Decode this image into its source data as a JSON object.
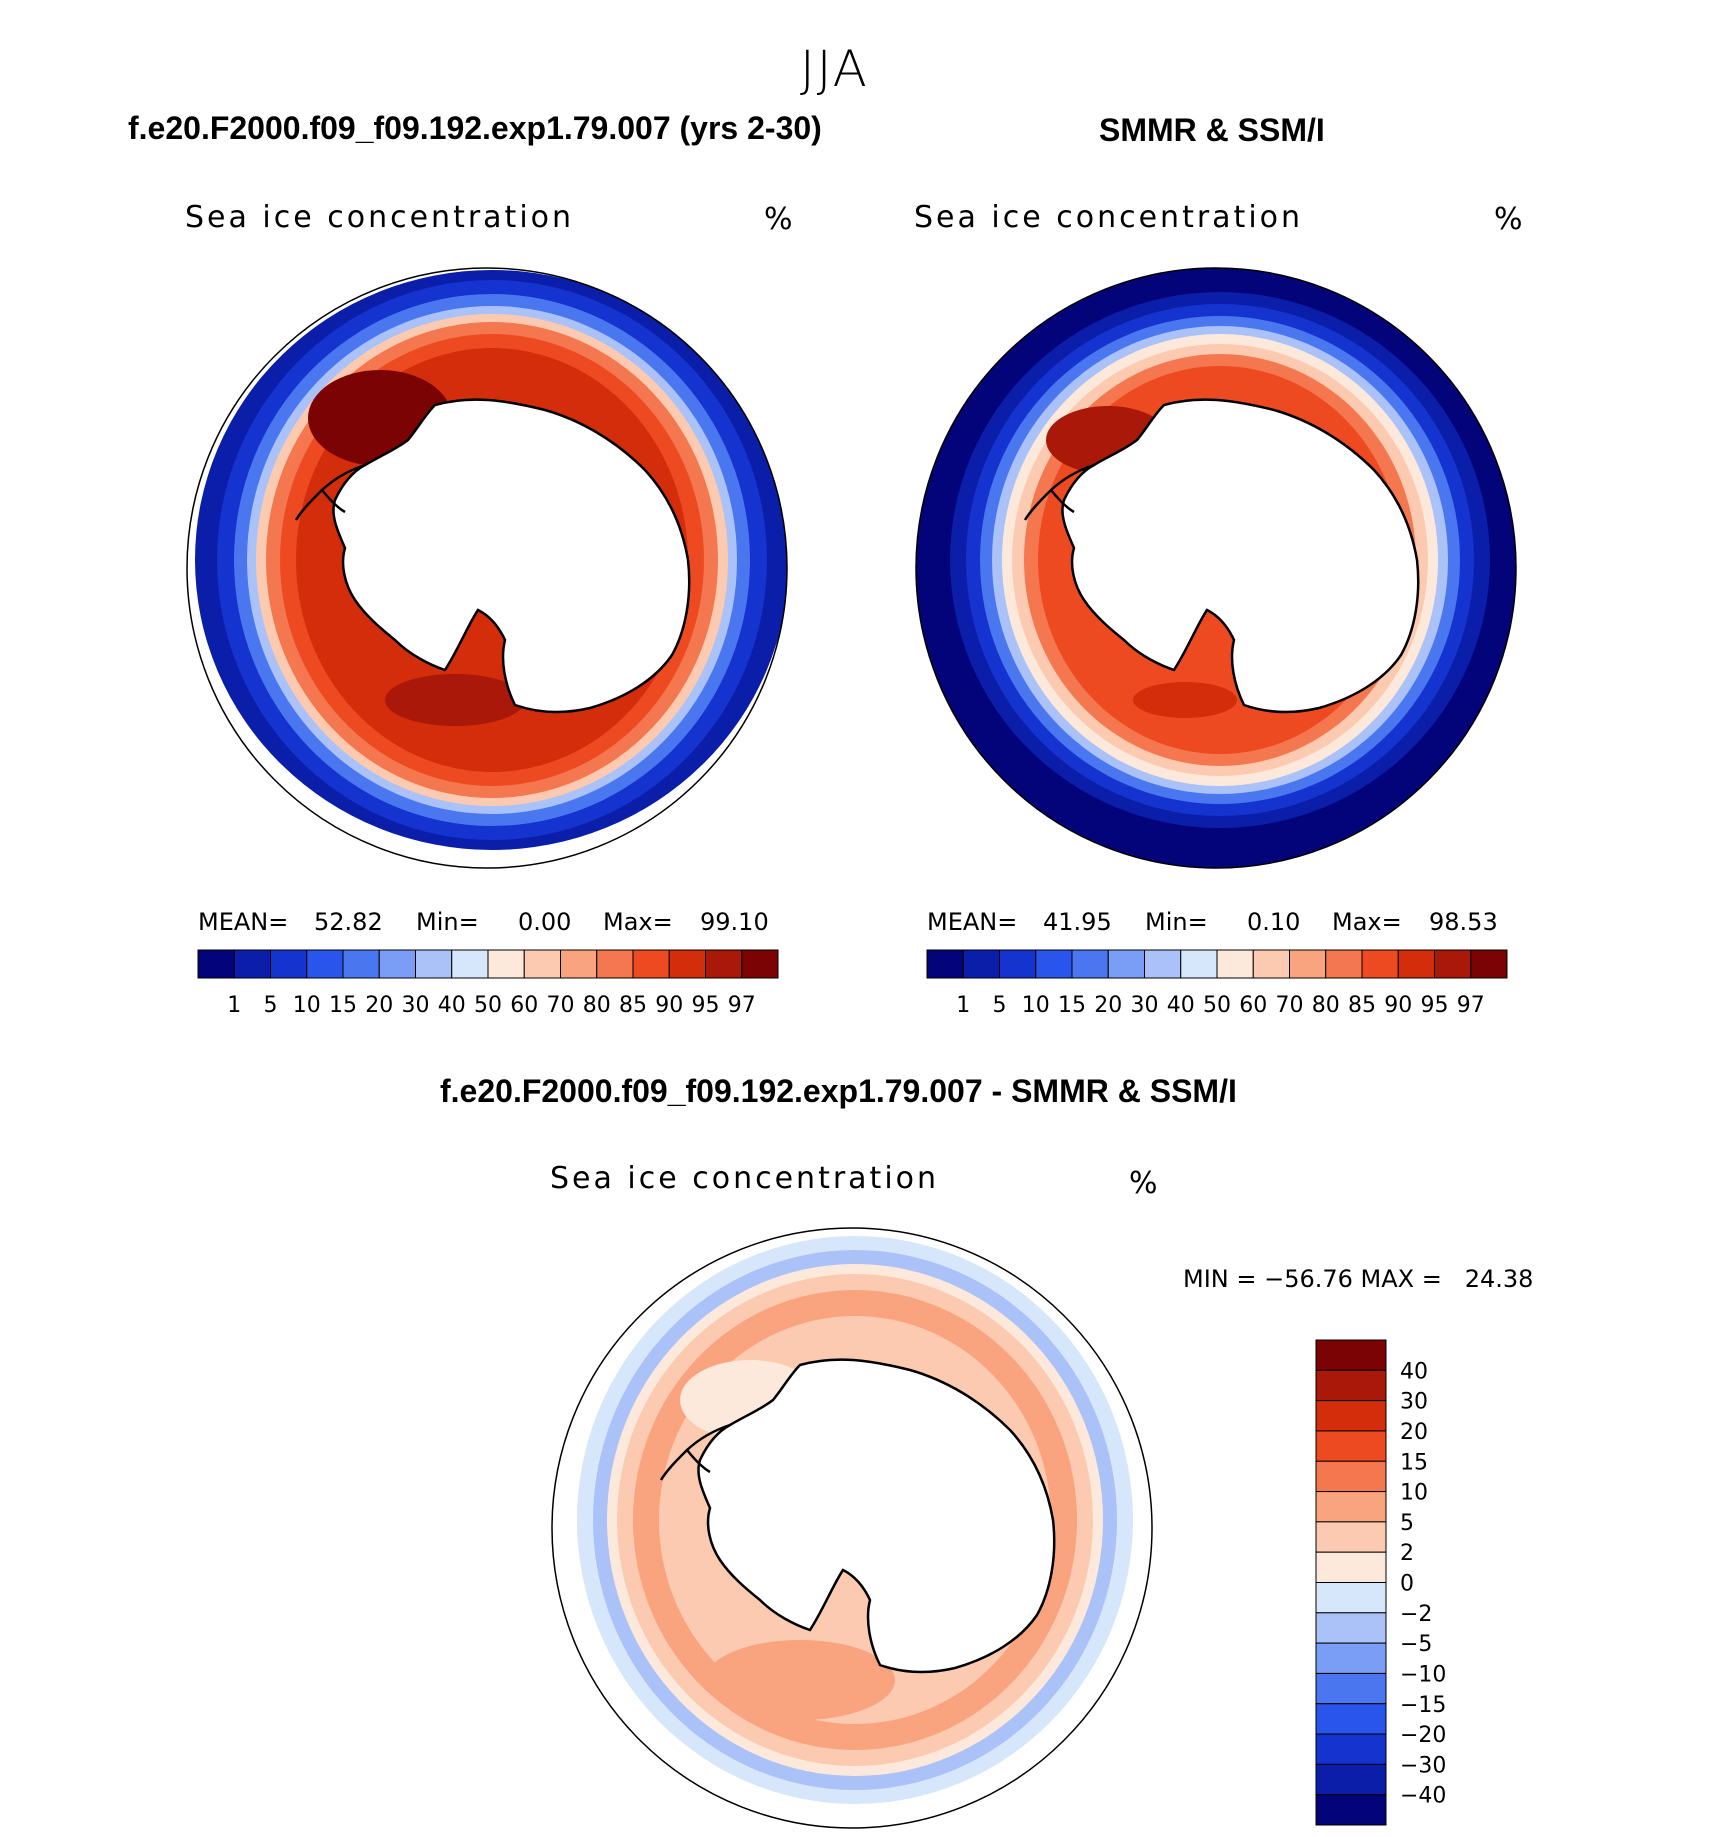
{
  "figure": {
    "season": "JJA",
    "panels": [
      {
        "id": "model",
        "title": "f.e20.F2000.f09_f09.192.exp1.79.007 (yrs 2-30)",
        "variable": "Sea ice concentration",
        "units": "%",
        "stats": {
          "mean_label": "MEAN=",
          "mean": "52.82",
          "min_label": "Min=",
          "min": "0.00",
          "max_label": "Max=",
          "max": "99.10"
        }
      },
      {
        "id": "obs",
        "title": "SMMR & SSM/I",
        "variable": "Sea ice concentration",
        "units": "%",
        "stats": {
          "mean_label": "MEAN=",
          "mean": "41.95",
          "min_label": "Min=",
          "min": "0.10",
          "max_label": "Max=",
          "max": "98.53"
        }
      },
      {
        "id": "diff",
        "title": "f.e20.F2000.f09_f09.192.exp1.79.007 - SMMR & SSM/I",
        "variable": "Sea ice concentration",
        "units": "%",
        "stats": {
          "text": "MIN = −56.76 MAX =   24.38"
        }
      }
    ]
  },
  "chart_data": [
    {
      "type": "heatmap",
      "projection": "south-polar-stereographic",
      "title": "f.e20.F2000.f09_f09.192.exp1.79.007 (yrs 2-30)",
      "variable": "Sea ice concentration",
      "units": "%",
      "mean": 52.82,
      "min": 0.0,
      "max": 99.1,
      "colorbar_levels": [
        "1",
        "5",
        "10",
        "15",
        "20",
        "30",
        "40",
        "50",
        "60",
        "70",
        "80",
        "85",
        "90",
        "95",
        "97"
      ],
      "colorbar_colors": [
        "#03037a",
        "#0a1eaa",
        "#1433cf",
        "#2a55ec",
        "#4a77f0",
        "#7a9ef5",
        "#aac2f8",
        "#d6e7fb",
        "#fde9db",
        "#fccab1",
        "#f9a37f",
        "#f4774f",
        "#ee4a22",
        "#d32d0c",
        "#a91808",
        "#7c0303"
      ],
      "colorbar_orientation": "horizontal"
    },
    {
      "type": "heatmap",
      "projection": "south-polar-stereographic",
      "title": "SMMR & SSM/I",
      "variable": "Sea ice concentration",
      "units": "%",
      "mean": 41.95,
      "min": 0.1,
      "max": 98.53,
      "colorbar_levels": [
        "1",
        "5",
        "10",
        "15",
        "20",
        "30",
        "40",
        "50",
        "60",
        "70",
        "80",
        "85",
        "90",
        "95",
        "97"
      ],
      "colorbar_colors": [
        "#03037a",
        "#0a1eaa",
        "#1433cf",
        "#2a55ec",
        "#4a77f0",
        "#7a9ef5",
        "#aac2f8",
        "#d6e7fb",
        "#fde9db",
        "#fccab1",
        "#f9a37f",
        "#f4774f",
        "#ee4a22",
        "#d32d0c",
        "#a91808",
        "#7c0303"
      ],
      "colorbar_orientation": "horizontal"
    },
    {
      "type": "heatmap",
      "projection": "south-polar-stereographic",
      "title": "f.e20.F2000.f09_f09.192.exp1.79.007 - SMMR & SSM/I",
      "variable": "Sea ice concentration",
      "units": "%",
      "min": -56.76,
      "max": 24.38,
      "colorbar_levels": [
        "40",
        "30",
        "20",
        "15",
        "10",
        "5",
        "2",
        "0",
        "−2",
        "−5",
        "−10",
        "−15",
        "−20",
        "−30",
        "−40"
      ],
      "colorbar_colors": [
        "#7c0303",
        "#a91808",
        "#d32d0c",
        "#ee4a22",
        "#f4774f",
        "#f9a37f",
        "#fccab1",
        "#fde9db",
        "#d6e7fb",
        "#aac2f8",
        "#7a9ef5",
        "#4a77f0",
        "#2a55ec",
        "#1433cf",
        "#0a1eaa",
        "#03037a"
      ],
      "colorbar_orientation": "vertical"
    }
  ]
}
